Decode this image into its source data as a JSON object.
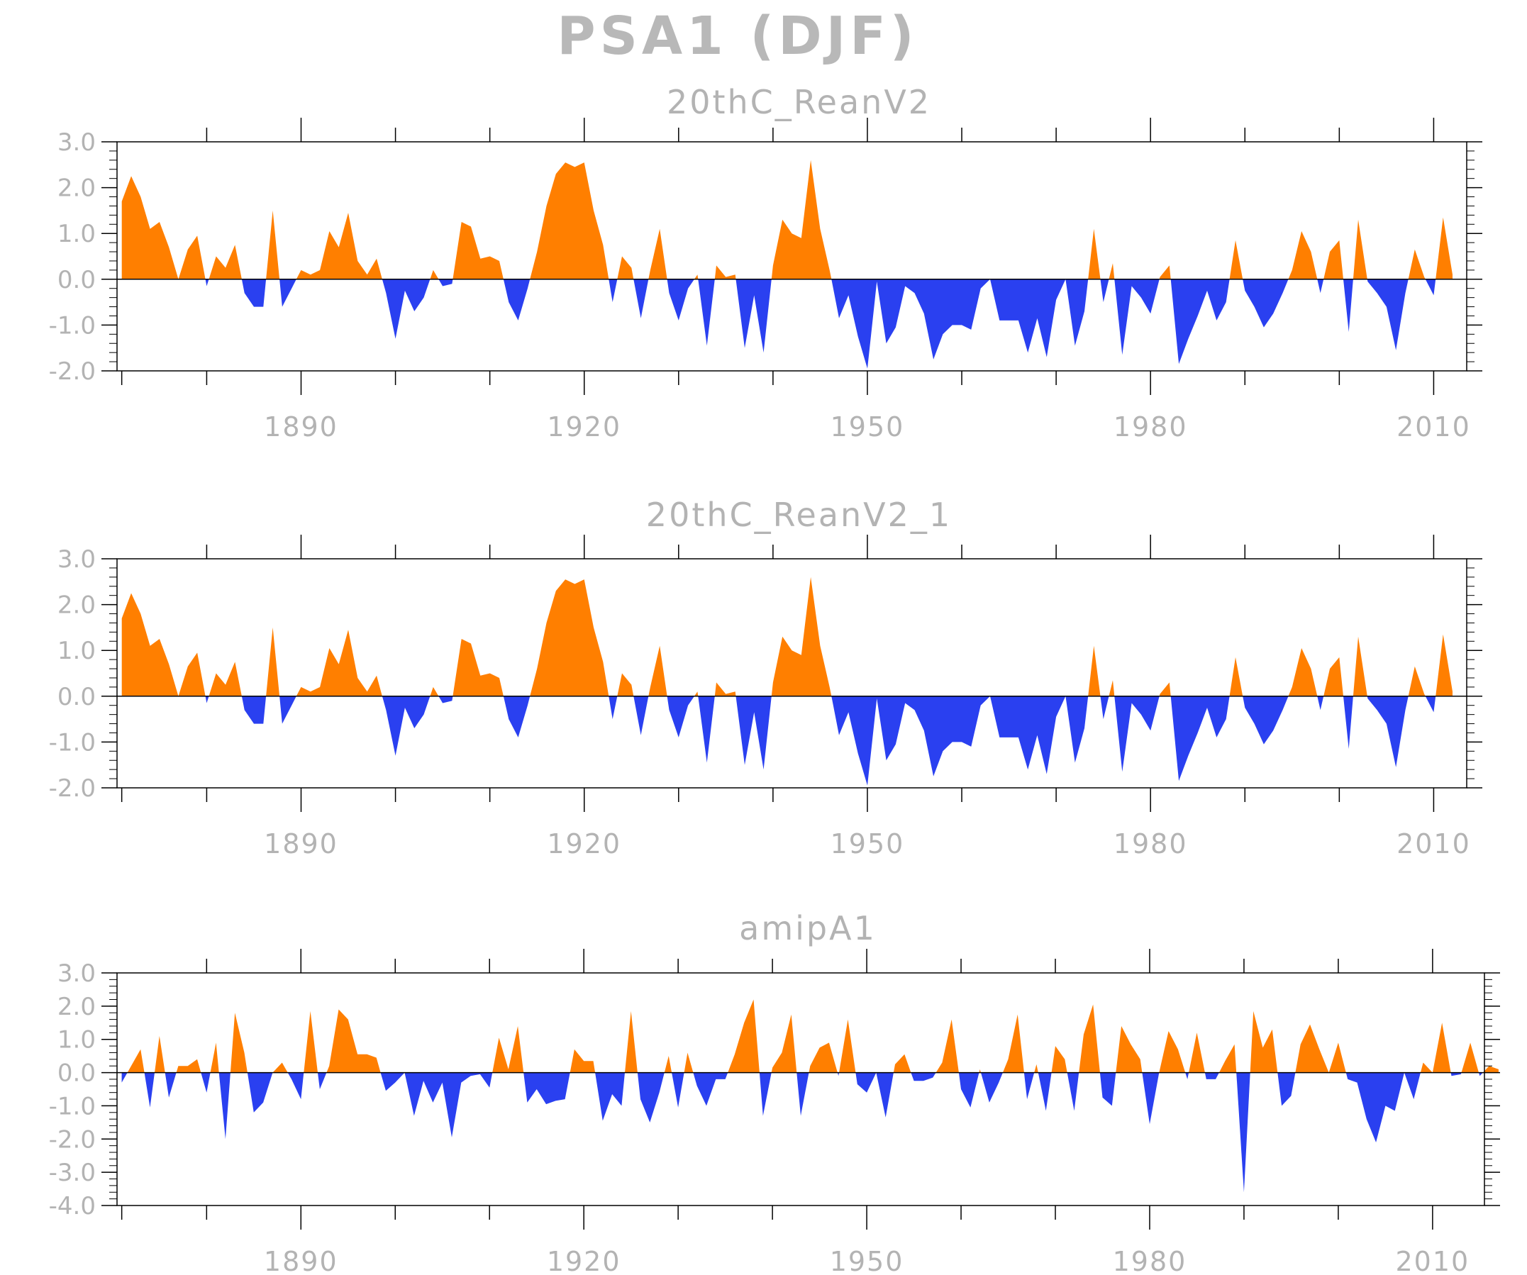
{
  "title": "PSA1 (DJF)",
  "colors": {
    "positive": "#ff7f00",
    "negative": "#2a40f0",
    "axis": "#000000",
    "text": "#b3b3b3"
  },
  "chart_data": [
    {
      "type": "area",
      "title": "20thC_ReanV2",
      "x_start": 1871,
      "xlim": [
        1870.5,
        2013.5
      ],
      "xticks": [
        1890,
        1920,
        1950,
        1980,
        2010
      ],
      "ylim": [
        -2,
        3
      ],
      "yticks": [
        3,
        2,
        1,
        0,
        -1,
        -2
      ],
      "ytick_labels": [
        "3.0",
        "2.0",
        "1.0",
        "0.0",
        "-1.0",
        "-2.0"
      ],
      "baseline": 0,
      "values": [
        1.7,
        2.25,
        1.8,
        1.1,
        1.25,
        0.7,
        0.0,
        0.65,
        0.95,
        -0.15,
        0.5,
        0.25,
        0.75,
        -0.3,
        -0.6,
        -0.6,
        1.5,
        -0.6,
        -0.2,
        0.2,
        0.1,
        0.2,
        1.05,
        0.7,
        1.45,
        0.4,
        0.1,
        0.45,
        -0.3,
        -1.3,
        -0.25,
        -0.7,
        -0.4,
        0.2,
        -0.15,
        -0.1,
        1.25,
        1.15,
        0.45,
        0.5,
        0.4,
        -0.5,
        -0.9,
        -0.2,
        0.6,
        1.6,
        2.3,
        2.55,
        2.45,
        2.55,
        1.5,
        0.75,
        -0.5,
        0.5,
        0.25,
        -0.85,
        0.2,
        1.1,
        -0.3,
        -0.9,
        -0.2,
        0.1,
        -1.45,
        0.3,
        0.05,
        0.1,
        -1.5,
        -0.35,
        -1.6,
        0.3,
        1.3,
        1.0,
        0.9,
        2.6,
        1.1,
        0.2,
        -0.85,
        -0.35,
        -1.25,
        -1.95,
        -0.05,
        -1.4,
        -1.05,
        -0.15,
        -0.3,
        -0.75,
        -1.75,
        -1.2,
        -1.0,
        -1.0,
        -1.1,
        -0.2,
        0.0,
        -0.9,
        -0.9,
        -0.9,
        -1.6,
        -0.85,
        -1.7,
        -0.45,
        0.0,
        -1.45,
        -0.7,
        1.1,
        -0.5,
        0.35,
        -1.65,
        -0.15,
        -0.4,
        -0.75,
        0.05,
        0.3,
        -1.85,
        -1.3,
        -0.8,
        -0.25,
        -0.9,
        -0.5,
        0.85,
        -0.25,
        -0.6,
        -1.05,
        -0.75,
        -0.3,
        0.2,
        1.05,
        0.6,
        -0.3,
        0.6,
        0.85,
        -1.15,
        1.3,
        -0.05,
        -0.3,
        -0.6,
        -1.55,
        -0.3,
        0.65,
        0.05,
        -0.35,
        1.35,
        0.1
      ]
    },
    {
      "type": "area",
      "title": "20thC_ReanV2_1",
      "x_start": 1871,
      "xlim": [
        1870.5,
        2013.5
      ],
      "xticks": [
        1890,
        1920,
        1950,
        1980,
        2010
      ],
      "ylim": [
        -2,
        3
      ],
      "yticks": [
        3,
        2,
        1,
        0,
        -1,
        -2
      ],
      "ytick_labels": [
        "3.0",
        "2.0",
        "1.0",
        "0.0",
        "-1.0",
        "-2.0"
      ],
      "baseline": 0,
      "values": [
        1.7,
        2.25,
        1.8,
        1.1,
        1.25,
        0.7,
        0.0,
        0.65,
        0.95,
        -0.15,
        0.5,
        0.25,
        0.75,
        -0.3,
        -0.6,
        -0.6,
        1.5,
        -0.6,
        -0.2,
        0.2,
        0.1,
        0.2,
        1.05,
        0.7,
        1.45,
        0.4,
        0.1,
        0.45,
        -0.3,
        -1.3,
        -0.25,
        -0.7,
        -0.4,
        0.2,
        -0.15,
        -0.1,
        1.25,
        1.15,
        0.45,
        0.5,
        0.4,
        -0.5,
        -0.9,
        -0.2,
        0.6,
        1.6,
        2.3,
        2.55,
        2.45,
        2.55,
        1.5,
        0.75,
        -0.5,
        0.5,
        0.25,
        -0.85,
        0.2,
        1.1,
        -0.3,
        -0.9,
        -0.2,
        0.1,
        -1.45,
        0.3,
        0.05,
        0.1,
        -1.5,
        -0.35,
        -1.6,
        0.3,
        1.3,
        1.0,
        0.9,
        2.6,
        1.1,
        0.2,
        -0.85,
        -0.35,
        -1.25,
        -1.95,
        -0.05,
        -1.4,
        -1.05,
        -0.15,
        -0.3,
        -0.75,
        -1.75,
        -1.2,
        -1.0,
        -1.0,
        -1.1,
        -0.2,
        0.0,
        -0.9,
        -0.9,
        -0.9,
        -1.6,
        -0.85,
        -1.7,
        -0.45,
        0.0,
        -1.45,
        -0.7,
        1.1,
        -0.5,
        0.35,
        -1.65,
        -0.15,
        -0.4,
        -0.75,
        0.05,
        0.3,
        -1.85,
        -1.3,
        -0.8,
        -0.25,
        -0.9,
        -0.5,
        0.85,
        -0.25,
        -0.6,
        -1.05,
        -0.75,
        -0.3,
        0.2,
        1.05,
        0.6,
        -0.3,
        0.6,
        0.85,
        -1.15,
        1.3,
        -0.05,
        -0.3,
        -0.6,
        -1.55,
        -0.3,
        0.65,
        0.05,
        -0.35,
        1.35,
        0.1
      ]
    },
    {
      "type": "area",
      "title": "amipA1",
      "x_start": 1871,
      "xlim": [
        1870.5,
        2015.5
      ],
      "xticks": [
        1890,
        1920,
        1950,
        1980,
        2010
      ],
      "ylim": [
        -4,
        3
      ],
      "yticks": [
        3,
        2,
        1,
        0,
        -1,
        -2,
        -3,
        -4
      ],
      "ytick_labels": [
        "3.0",
        "2.0",
        "1.0",
        "0.0",
        "-1.0",
        "-2.0",
        "-3.0",
        "-4.0"
      ],
      "baseline": 0,
      "values": [
        -0.3,
        0.2,
        0.7,
        -1.05,
        1.1,
        -0.75,
        0.2,
        0.2,
        0.4,
        -0.6,
        0.9,
        -2.0,
        1.8,
        0.6,
        -1.2,
        -0.9,
        0.0,
        0.3,
        -0.2,
        -0.8,
        1.85,
        -0.5,
        0.2,
        1.9,
        1.6,
        0.55,
        0.55,
        0.45,
        -0.55,
        -0.3,
        0.0,
        -1.3,
        -0.25,
        -0.9,
        -0.3,
        -1.95,
        -0.3,
        -0.1,
        -0.05,
        -0.45,
        1.05,
        0.1,
        1.4,
        -0.9,
        -0.5,
        -0.95,
        -0.85,
        -0.8,
        0.7,
        0.35,
        0.35,
        -1.45,
        -0.65,
        -1.0,
        1.85,
        -0.8,
        -1.5,
        -0.6,
        0.5,
        -1.05,
        0.6,
        -0.4,
        -1.0,
        -0.2,
        -0.2,
        0.55,
        1.5,
        2.2,
        -1.3,
        0.15,
        0.6,
        1.75,
        -1.3,
        0.2,
        0.75,
        0.9,
        -0.1,
        1.6,
        -0.35,
        -0.6,
        0.0,
        -1.35,
        0.25,
        0.55,
        -0.25,
        -0.25,
        -0.15,
        0.3,
        1.6,
        -0.5,
        -1.05,
        0.1,
        -0.9,
        -0.3,
        0.4,
        1.75,
        -0.8,
        0.25,
        -1.15,
        0.8,
        0.4,
        -1.15,
        1.15,
        2.05,
        -0.75,
        -1.0,
        1.4,
        0.85,
        0.4,
        -1.55,
        0.0,
        1.25,
        0.7,
        -0.2,
        1.2,
        -0.2,
        -0.2,
        0.35,
        0.85,
        -3.6,
        1.85,
        0.75,
        1.3,
        -1.0,
        -0.7,
        0.85,
        1.45,
        0.7,
        0.0,
        0.9,
        -0.2,
        -0.3,
        -1.4,
        -2.1,
        -1.0,
        -1.15,
        0.0,
        -0.8,
        0.3,
        0.0,
        1.5,
        -0.1,
        -0.05,
        0.9,
        -0.1,
        0.2,
        0.1
      ]
    }
  ]
}
